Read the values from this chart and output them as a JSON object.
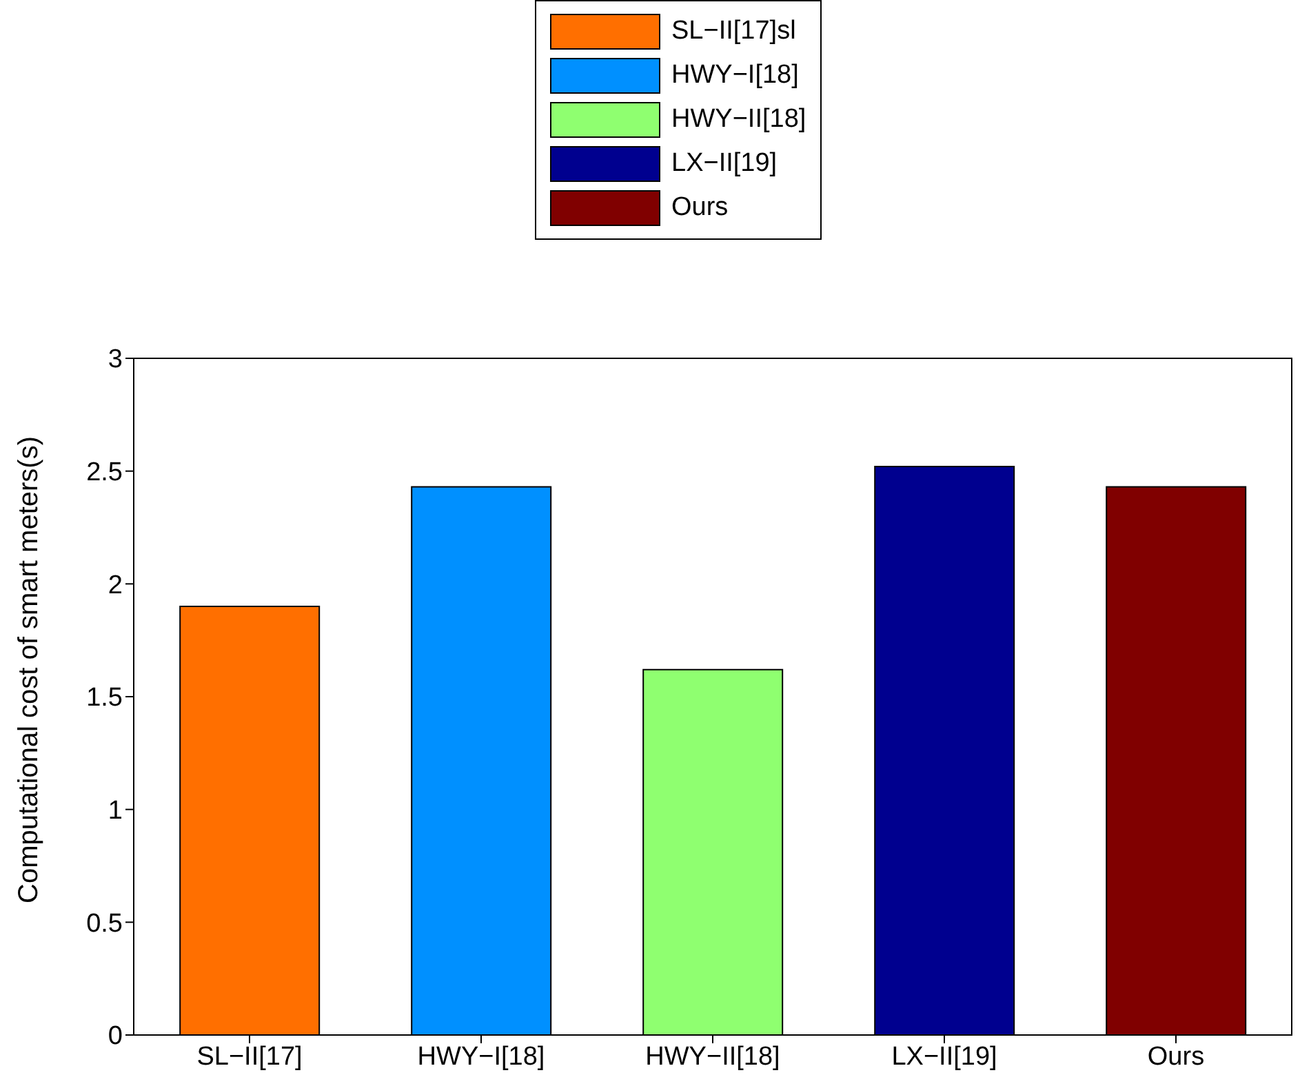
{
  "chart_data": {
    "type": "bar",
    "ylabel": "Computational cost of smart meters(s)",
    "categories": [
      "SL−II[17]",
      "HWY−I[18]",
      "HWY−II[18]",
      "LX−II[19]",
      "Ours"
    ],
    "series": [
      {
        "name": "SL−II[17]sl",
        "color": "#ff6f00",
        "values": [
          1.9,
          null,
          null,
          null,
          null
        ]
      },
      {
        "name": "HWY−I[18]",
        "color": "#0090ff",
        "values": [
          null,
          2.43,
          null,
          null,
          null
        ]
      },
      {
        "name": "HWY−II[18]",
        "color": "#8fff70",
        "values": [
          null,
          null,
          1.62,
          null,
          null
        ]
      },
      {
        "name": "LX−II[19]",
        "color": "#00008f",
        "values": [
          null,
          null,
          null,
          2.52,
          null
        ]
      },
      {
        "name": "Ours",
        "color": "#800000",
        "values": [
          null,
          null,
          null,
          null,
          2.43
        ]
      }
    ],
    "ylim": [
      0,
      3
    ],
    "yticks": [
      0,
      0.5,
      1,
      1.5,
      2,
      2.5,
      3
    ],
    "grid": false,
    "legend": "top"
  }
}
